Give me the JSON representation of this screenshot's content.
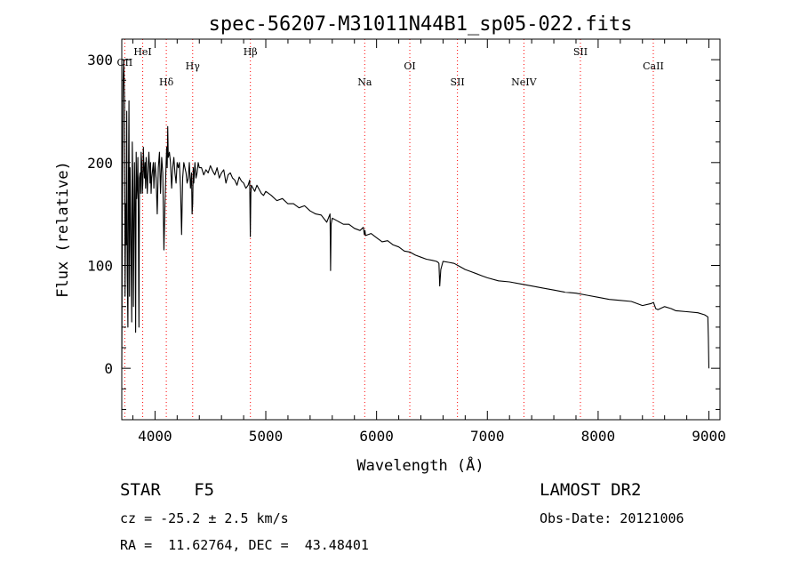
{
  "chart_data": {
    "type": "line",
    "title": "spec-56207-M31011N44B1_sp05-022.fits",
    "xlabel": "Wavelength (Å)",
    "ylabel": "Flux (relative)",
    "xlim": [
      3700,
      9100
    ],
    "ylim": [
      -50,
      320
    ],
    "xticks": [
      4000,
      5000,
      6000,
      7000,
      8000,
      9000
    ],
    "yticks": [
      0,
      100,
      200,
      300
    ],
    "lines": [
      {
        "label": "OII",
        "wavelength": 3727
      },
      {
        "label": "HeI",
        "wavelength": 3889
      },
      {
        "label": "Hδ",
        "wavelength": 4102
      },
      {
        "label": "Hγ",
        "wavelength": 4340
      },
      {
        "label": "Hβ",
        "wavelength": 4861
      },
      {
        "label": "Na",
        "wavelength": 5893
      },
      {
        "label": "OI",
        "wavelength": 6300
      },
      {
        "label": "SII",
        "wavelength": 6730
      },
      {
        "label": "NeIV",
        "wavelength": 7330
      },
      {
        "label": "SII",
        "wavelength": 7840
      },
      {
        "label": "CaII",
        "wavelength": 8498
      }
    ],
    "series": [
      {
        "name": "spectrum",
        "x": [
          3700,
          3705,
          3712,
          3718,
          3725,
          3730,
          3735,
          3740,
          3745,
          3750,
          3755,
          3760,
          3765,
          3770,
          3775,
          3780,
          3785,
          3790,
          3795,
          3800,
          3805,
          3810,
          3815,
          3820,
          3825,
          3830,
          3835,
          3840,
          3845,
          3850,
          3855,
          3860,
          3865,
          3870,
          3875,
          3880,
          3885,
          3890,
          3895,
          3900,
          3905,
          3910,
          3915,
          3920,
          3925,
          3930,
          3935,
          3940,
          3945,
          3950,
          3955,
          3960,
          3965,
          3970,
          3975,
          3980,
          3985,
          3990,
          3995,
          4000,
          4010,
          4020,
          4030,
          4040,
          4050,
          4060,
          4070,
          4080,
          4090,
          4100,
          4105,
          4110,
          4115,
          4120,
          4130,
          4140,
          4150,
          4160,
          4170,
          4180,
          4190,
          4200,
          4210,
          4220,
          4230,
          4240,
          4250,
          4260,
          4270,
          4280,
          4290,
          4300,
          4310,
          4320,
          4330,
          4335,
          4340,
          4345,
          4350,
          4360,
          4370,
          4380,
          4390,
          4400,
          4420,
          4440,
          4460,
          4480,
          4500,
          4520,
          4540,
          4560,
          4580,
          4600,
          4620,
          4640,
          4660,
          4680,
          4700,
          4720,
          4740,
          4760,
          4780,
          4800,
          4820,
          4840,
          4855,
          4860,
          4865,
          4870,
          4880,
          4900,
          4920,
          4940,
          4960,
          4980,
          5000,
          5050,
          5100,
          5150,
          5200,
          5250,
          5300,
          5350,
          5400,
          5450,
          5500,
          5550,
          5580,
          5585,
          5590,
          5600,
          5650,
          5700,
          5750,
          5800,
          5850,
          5880,
          5890,
          5895,
          5900,
          5950,
          6000,
          6050,
          6100,
          6150,
          6200,
          6250,
          6300,
          6350,
          6400,
          6450,
          6500,
          6540,
          6555,
          6563,
          6570,
          6580,
          6600,
          6650,
          6700,
          6750,
          6800,
          6850,
          6900,
          6950,
          7000,
          7100,
          7200,
          7300,
          7400,
          7500,
          7600,
          7700,
          7800,
          7900,
          8000,
          8100,
          8200,
          8300,
          8400,
          8480,
          8500,
          8520,
          8540,
          8600,
          8660,
          8700,
          8800,
          8900,
          8960,
          8990,
          8995,
          9000
        ],
        "y": [
          0,
          150,
          280,
          300,
          260,
          70,
          160,
          120,
          250,
          90,
          40,
          180,
          260,
          70,
          195,
          150,
          100,
          45,
          220,
          175,
          60,
          130,
          200,
          155,
          35,
          210,
          165,
          175,
          205,
          140,
          40,
          185,
          190,
          170,
          210,
          200,
          170,
          180,
          215,
          195,
          185,
          200,
          175,
          205,
          190,
          170,
          185,
          200,
          210,
          195,
          180,
          200,
          170,
          185,
          190,
          195,
          200,
          175,
          190,
          200,
          185,
          150,
          195,
          210,
          170,
          205,
          190,
          115,
          160,
          200,
          215,
          195,
          235,
          205,
          210,
          200,
          175,
          195,
          205,
          190,
          180,
          200,
          195,
          200,
          175,
          130,
          185,
          200,
          195,
          190,
          180,
          185,
          200,
          175,
          190,
          150,
          160,
          195,
          180,
          200,
          185,
          190,
          200,
          195,
          195,
          188,
          193,
          190,
          197,
          192,
          188,
          195,
          185,
          190,
          193,
          180,
          188,
          190,
          185,
          183,
          178,
          186,
          182,
          180,
          175,
          178,
          183,
          128,
          170,
          178,
          176,
          172,
          178,
          174,
          170,
          168,
          172,
          168,
          163,
          165,
          160,
          160,
          156,
          158,
          153,
          150,
          149,
          142,
          150,
          95,
          140,
          146,
          143,
          140,
          140,
          136,
          134,
          137,
          130,
          134,
          129,
          131,
          127,
          123,
          124,
          120,
          118,
          114,
          113,
          110,
          108,
          106,
          105,
          104,
          103,
          102,
          80,
          96,
          104,
          103,
          102,
          99,
          96,
          94,
          92,
          90,
          88,
          85,
          84,
          82,
          80,
          78,
          76,
          74,
          73,
          71,
          69,
          67,
          66,
          65,
          61,
          63,
          64,
          58,
          57,
          60,
          58,
          56,
          55,
          54,
          52,
          50,
          30,
          0
        ]
      }
    ]
  },
  "info": {
    "class_label": "STAR",
    "subclass": "F5",
    "survey": "LAMOST DR2",
    "redshift": "cz = -25.2 ± 2.5 km/s",
    "obs_date": "Obs-Date: 20121006",
    "coords": "RA =  11.62764, DEC =  43.48401"
  },
  "colors": {
    "line_marker": "#ff0000",
    "spectrum": "#000000",
    "axes": "#000000"
  }
}
